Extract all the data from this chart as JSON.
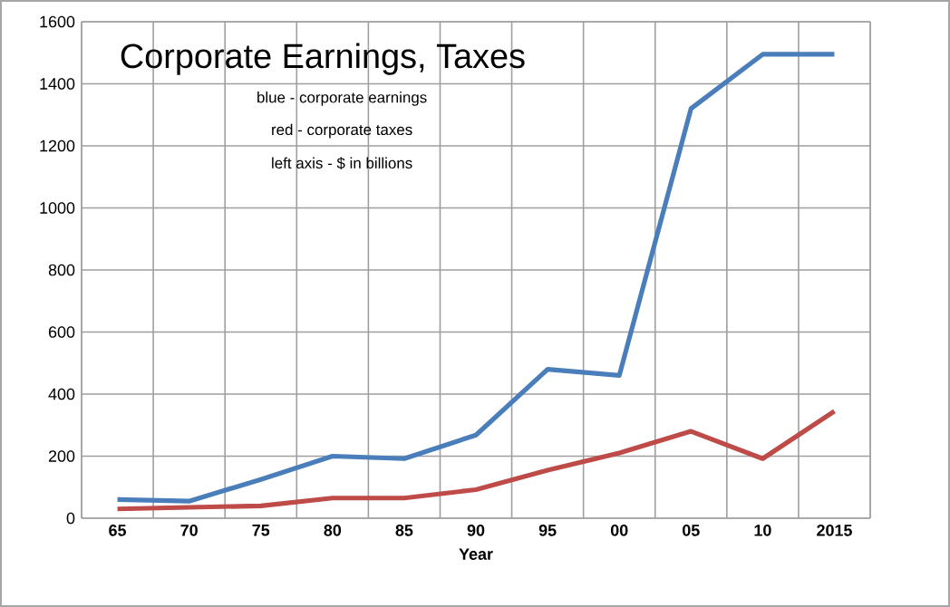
{
  "chart_data": {
    "type": "line",
    "title": "Corporate Earnings, Taxes",
    "xlabel": "Year",
    "annotations": [
      "blue - corporate earnings",
      "red - corporate taxes",
      "left axis - $ in billions"
    ],
    "categories": [
      "65",
      "70",
      "75",
      "80",
      "85",
      "90",
      "95",
      "00",
      "05",
      "10",
      "2015"
    ],
    "series": [
      {
        "color": "#4a7ebb",
        "values": [
          60,
          55,
          125,
          200,
          192,
          268,
          480,
          460,
          1320,
          1495,
          1495
        ]
      },
      {
        "color": "#be4b48",
        "values": [
          30,
          35,
          40,
          65,
          65,
          92,
          155,
          210,
          280,
          192,
          345
        ]
      }
    ],
    "ylim": [
      0,
      1600
    ],
    "yticks": [
      0,
      200,
      400,
      600,
      800,
      1000,
      1200,
      1400,
      1600
    ],
    "grid": true,
    "marker": "none",
    "line_style": "solid"
  }
}
